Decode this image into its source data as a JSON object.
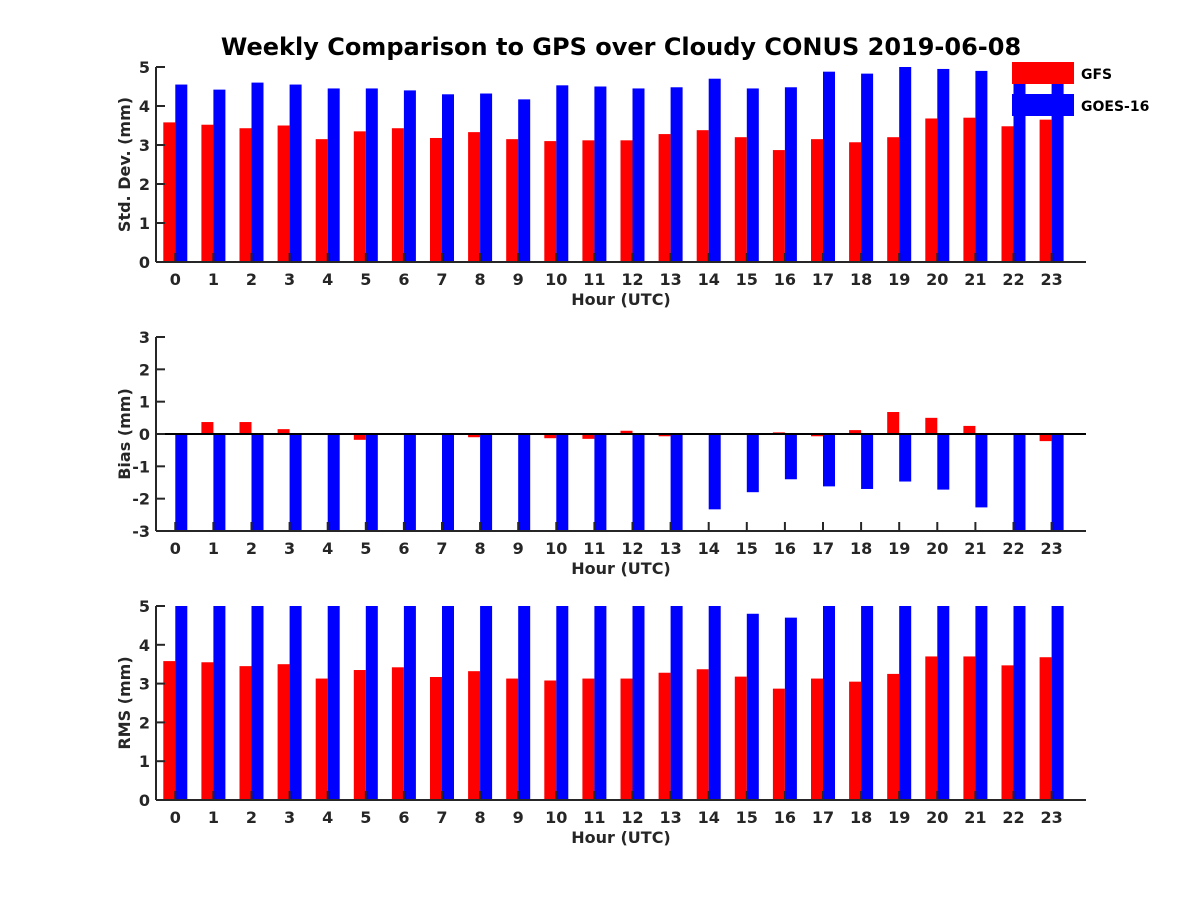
{
  "title": "Weekly Comparison to GPS over Cloudy CONUS 2019-06-08",
  "colors": {
    "GFS": "#ff0000",
    "GOES-16": "#0000ff"
  },
  "chart_data": [
    {
      "type": "bar",
      "title": "Weekly Comparison to GPS over Cloudy CONUS 2019-06-08",
      "xlabel": "Hour (UTC)",
      "ylabel": "Std. Dev. (mm)",
      "ylim": [
        0,
        5
      ],
      "yticks": [
        0,
        1,
        2,
        3,
        4,
        5
      ],
      "categories": [
        "0",
        "1",
        "2",
        "3",
        "4",
        "5",
        "6",
        "7",
        "8",
        "9",
        "10",
        "11",
        "12",
        "13",
        "14",
        "15",
        "16",
        "17",
        "18",
        "19",
        "20",
        "21",
        "22",
        "23"
      ],
      "legend": [
        "GFS",
        "GOES-16"
      ],
      "legend_position": "top-right",
      "series": [
        {
          "name": "GFS",
          "values": [
            3.58,
            3.52,
            3.43,
            3.5,
            3.15,
            3.35,
            3.43,
            3.18,
            3.33,
            3.15,
            3.1,
            3.12,
            3.12,
            3.28,
            3.38,
            3.2,
            2.87,
            3.15,
            3.07,
            3.2,
            3.68,
            3.7,
            3.48,
            3.65
          ]
        },
        {
          "name": "GOES-16",
          "values": [
            4.55,
            4.42,
            4.6,
            4.55,
            4.45,
            4.45,
            4.4,
            4.3,
            4.32,
            4.17,
            4.53,
            4.5,
            4.45,
            4.48,
            4.7,
            4.45,
            4.48,
            4.88,
            4.83,
            5.0,
            4.95,
            4.9,
            4.95,
            4.7
          ]
        }
      ]
    },
    {
      "type": "bar",
      "xlabel": "Hour (UTC)",
      "ylabel": "Bias (mm)",
      "ylim": [
        -3,
        3
      ],
      "yticks": [
        -3,
        -2,
        -1,
        0,
        1,
        2,
        3
      ],
      "zero_line": true,
      "categories": [
        "0",
        "1",
        "2",
        "3",
        "4",
        "5",
        "6",
        "7",
        "8",
        "9",
        "10",
        "11",
        "12",
        "13",
        "14",
        "15",
        "16",
        "17",
        "18",
        "19",
        "20",
        "21",
        "22",
        "23"
      ],
      "series": [
        {
          "name": "GFS",
          "values": [
            0.0,
            0.37,
            0.37,
            0.15,
            0.0,
            -0.18,
            -0.03,
            0.0,
            -0.1,
            -0.03,
            -0.13,
            -0.15,
            0.1,
            -0.07,
            -0.03,
            0.0,
            0.05,
            -0.07,
            0.12,
            0.68,
            0.5,
            0.25,
            0.0,
            -0.22
          ]
        },
        {
          "name": "GOES-16",
          "values": [
            -3.0,
            -3.0,
            -3.0,
            -3.0,
            -3.0,
            -3.0,
            -3.0,
            -3.0,
            -3.0,
            -3.0,
            -3.0,
            -3.0,
            -3.0,
            -3.0,
            -2.33,
            -1.8,
            -1.4,
            -1.62,
            -1.7,
            -1.47,
            -1.72,
            -2.27,
            -3.0,
            -3.0
          ]
        }
      ]
    },
    {
      "type": "bar",
      "xlabel": "Hour (UTC)",
      "ylabel": "RMS (mm)",
      "ylim": [
        0,
        5
      ],
      "yticks": [
        0,
        1,
        2,
        3,
        4,
        5
      ],
      "categories": [
        "0",
        "1",
        "2",
        "3",
        "4",
        "5",
        "6",
        "7",
        "8",
        "9",
        "10",
        "11",
        "12",
        "13",
        "14",
        "15",
        "16",
        "17",
        "18",
        "19",
        "20",
        "21",
        "22",
        "23"
      ],
      "series": [
        {
          "name": "GFS",
          "values": [
            3.58,
            3.55,
            3.45,
            3.5,
            3.13,
            3.35,
            3.42,
            3.17,
            3.32,
            3.13,
            3.08,
            3.13,
            3.13,
            3.28,
            3.37,
            3.18,
            2.87,
            3.13,
            3.05,
            3.25,
            3.7,
            3.7,
            3.47,
            3.68
          ]
        },
        {
          "name": "GOES-16",
          "values": [
            5.0,
            5.0,
            5.0,
            5.0,
            5.0,
            5.0,
            5.0,
            5.0,
            5.0,
            5.0,
            5.0,
            5.0,
            5.0,
            5.0,
            5.0,
            4.8,
            4.7,
            5.0,
            5.0,
            5.0,
            5.0,
            5.0,
            5.0,
            5.0
          ]
        }
      ]
    }
  ]
}
